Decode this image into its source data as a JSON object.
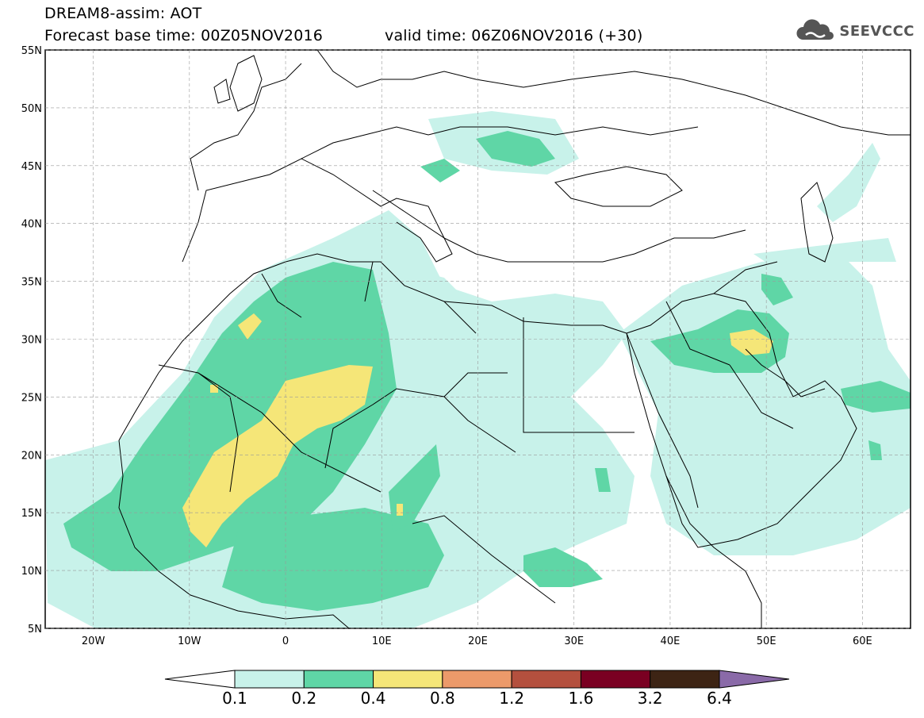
{
  "header": {
    "line1": "DREAM8-assim: AOT",
    "base_time": "Forecast base time: 00Z05NOV2016",
    "valid_time": "valid time: 06Z06NOV2016 (+30)",
    "logo_text": "SEEVCCC",
    "logo_icon": "cloud-logo-icon"
  },
  "map": {
    "lon_range": [
      -25,
      65
    ],
    "lat_range": [
      5,
      55
    ],
    "lat_labels": [
      "55N",
      "50N",
      "45N",
      "40N",
      "35N",
      "30N",
      "25N",
      "20N",
      "15N",
      "10N",
      "5N"
    ],
    "lat_values": [
      55,
      50,
      45,
      40,
      35,
      30,
      25,
      20,
      15,
      10,
      5
    ],
    "lon_labels": [
      "20W",
      "10W",
      "0",
      "10E",
      "20E",
      "30E",
      "40E",
      "50E",
      "60E"
    ],
    "lon_values": [
      -20,
      -10,
      0,
      10,
      20,
      30,
      40,
      50,
      60
    ]
  },
  "colorbar": {
    "colors": [
      "#ffffff",
      "#c8f2ea",
      "#5fd6a6",
      "#f5e678",
      "#ec9a6a",
      "#b4503e",
      "#7a0022",
      "#3d2414",
      "#8a6aa8"
    ],
    "labels": [
      "0.1",
      "0.2",
      "0.4",
      "0.8",
      "1.2",
      "1.6",
      "3.2",
      "6.4"
    ]
  }
}
